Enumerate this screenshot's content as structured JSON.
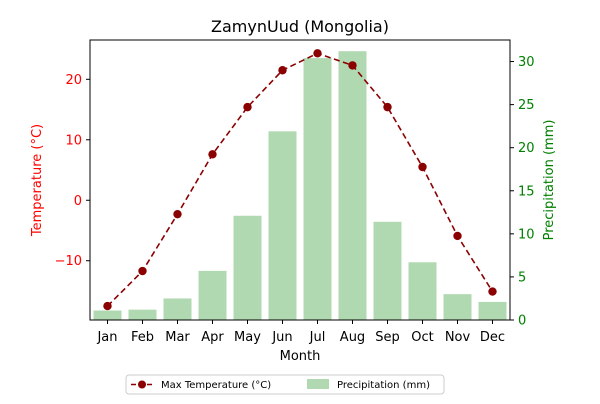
{
  "chart_data": {
    "type": "bar+line",
    "title": "ZamynUud (Mongolia)",
    "xlabel": "Month",
    "categories": [
      "Jan",
      "Feb",
      "Mar",
      "Apr",
      "May",
      "Jun",
      "Jul",
      "Aug",
      "Sep",
      "Oct",
      "Nov",
      "Dec"
    ],
    "y_left": {
      "label": "Temperature (°C)",
      "color": "#ff0000",
      "lim": [
        -19.8,
        26.5
      ],
      "ticks": [
        -10,
        0,
        10,
        20
      ],
      "tick_labels": [
        "−10",
        "0",
        "10",
        "20"
      ]
    },
    "y_right": {
      "label": "Precipitation (mm)",
      "color": "#008000",
      "lim": [
        0,
        32.5
      ],
      "ticks": [
        0,
        5,
        10,
        15,
        20,
        25,
        30
      ],
      "tick_labels": [
        "0",
        "5",
        "10",
        "15",
        "20",
        "25",
        "30"
      ]
    },
    "series": [
      {
        "name": "Max Temperature (°C)",
        "type": "line",
        "axis": "left",
        "color": "#8b0000",
        "style": "dashed",
        "marker": "circle",
        "values": [
          -17.5,
          -11.7,
          -2.3,
          7.6,
          15.4,
          21.5,
          24.3,
          22.3,
          15.4,
          5.5,
          -5.9,
          -15.1
        ]
      },
      {
        "name": "Precipitation (mm)",
        "type": "bar",
        "axis": "right",
        "color": "#b0d9b1",
        "values": [
          1.1,
          1.2,
          2.5,
          5.7,
          12.1,
          21.9,
          30.4,
          31.2,
          11.4,
          6.7,
          3.0,
          2.1
        ]
      }
    ],
    "legend": {
      "placement": "bottom-center",
      "entries": [
        "Max Temperature (°C)",
        "Precipitation (mm)"
      ]
    },
    "grid": false
  }
}
